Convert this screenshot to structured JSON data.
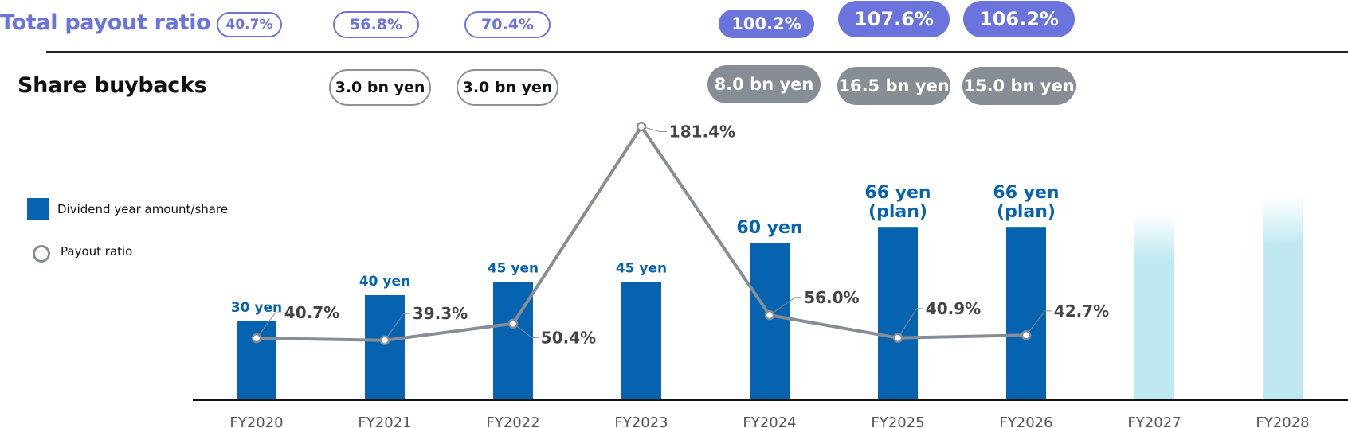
{
  "header": {
    "total_payout_label": "Total payout ratio",
    "share_buybacks_label": "Share buybacks"
  },
  "legend": {
    "bar_label": "Dividend year amount/share",
    "line_label": "Payout ratio"
  },
  "total_payout_ratios": [
    "40.7%",
    "56.8%",
    "70.4%",
    "",
    "100.2%",
    "107.6%",
    "106.2%",
    "",
    ""
  ],
  "share_buybacks": [
    "",
    "3.0 bn yen",
    "3.0 bn yen",
    "",
    "8.0 bn yen",
    "16.5 bn yen",
    "15.0 bn yen",
    "",
    ""
  ],
  "colors": {
    "bar": "#0563b0",
    "future_bar": "#bfe8f0",
    "line": "#878d95",
    "payout_accent": "#6b73dc",
    "buyback_gray": "#878d95",
    "bar_label": "#0563b0",
    "ratio_label": "#444444"
  },
  "chart_data": {
    "type": "bar",
    "categories": [
      "FY2020",
      "FY2021",
      "FY2022",
      "FY2023",
      "FY2024",
      "FY2025",
      "FY2026",
      "FY2027",
      "FY2028"
    ],
    "series": [
      {
        "name": "Dividend year amount/share",
        "type": "bar",
        "values": [
          30,
          40,
          45,
          45,
          60,
          66,
          66,
          null,
          null
        ],
        "labels": [
          "30 yen",
          "40 yen",
          "45 yen",
          "45 yen",
          "60 yen",
          "66 yen\n(plan)",
          "66 yen\n(plan)",
          "",
          ""
        ]
      },
      {
        "name": "Payout ratio",
        "type": "line",
        "values": [
          40.7,
          39.3,
          50.4,
          181.4,
          56.0,
          40.9,
          42.7,
          null,
          null
        ],
        "labels": [
          "40.7%",
          "39.3%",
          "50.4%",
          "181.4%",
          "56.0%",
          "40.9%",
          "42.7%",
          "",
          ""
        ]
      }
    ],
    "future_bars": [
      {
        "category": "FY2027",
        "value": 71
      },
      {
        "category": "FY2028",
        "value": 78
      }
    ],
    "xlabel": "",
    "ylabel": ""
  }
}
